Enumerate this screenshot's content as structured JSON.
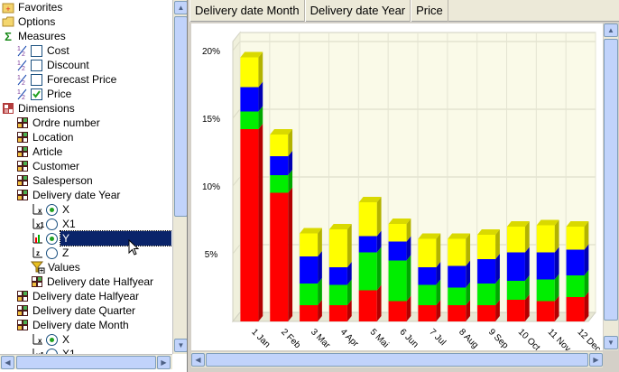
{
  "tree": {
    "items": [
      {
        "label": "Favorites",
        "icon": "favorites-star-folder-icon",
        "indent": 0
      },
      {
        "label": "Options",
        "icon": "folder-icon",
        "indent": 0
      },
      {
        "label": "Measures",
        "icon": "sigma-measures-icon",
        "indent": 0
      },
      {
        "label": "Cost",
        "icon": "measure-icon",
        "indent": 1,
        "checkbox": false
      },
      {
        "label": "Discount",
        "icon": "measure-icon",
        "indent": 1,
        "checkbox": false
      },
      {
        "label": "Forecast Price",
        "icon": "measure-icon",
        "indent": 1,
        "checkbox": false
      },
      {
        "label": "Price",
        "icon": "measure-icon",
        "indent": 1,
        "checkbox": true
      },
      {
        "label": "Dimensions",
        "icon": "dimensions-cube-icon",
        "indent": 0
      },
      {
        "label": "Ordre number",
        "icon": "dimension-cube-icon",
        "indent": 1
      },
      {
        "label": "Location",
        "icon": "dimension-cube-icon",
        "indent": 1
      },
      {
        "label": "Article",
        "icon": "dimension-cube-icon",
        "indent": 1
      },
      {
        "label": "Customer",
        "icon": "dimension-cube-icon",
        "indent": 1
      },
      {
        "label": "Salesperson",
        "icon": "dimension-cube-icon",
        "indent": 1
      },
      {
        "label": "Delivery date Year",
        "icon": "dimension-cube-icon",
        "indent": 1
      },
      {
        "label": "X",
        "icon": "x-axis-icon",
        "indent": 2,
        "radio": "on"
      },
      {
        "label": "X1",
        "icon": "x1-axis-icon",
        "indent": 2,
        "radio": "off"
      },
      {
        "label": "Y",
        "icon": "y-axis-icon",
        "indent": 2,
        "radio": "on",
        "selected": true
      },
      {
        "label": "Z",
        "icon": "z-axis-icon",
        "indent": 2,
        "radio": "off"
      },
      {
        "label": "Values",
        "icon": "values-filter-icon",
        "indent": 2
      },
      {
        "label": "Delivery date Halfyear",
        "icon": "dimension-cube-icon",
        "indent": 2
      },
      {
        "label": "Delivery date Halfyear",
        "icon": "dimension-cube-icon",
        "indent": 1
      },
      {
        "label": "Delivery date Quarter",
        "icon": "dimension-cube-icon",
        "indent": 1
      },
      {
        "label": "Delivery date Month",
        "icon": "dimension-cube-icon",
        "indent": 1
      },
      {
        "label": "X",
        "icon": "x-axis-icon",
        "indent": 2,
        "radio": "on"
      },
      {
        "label": "X1",
        "icon": "x1-axis-icon",
        "indent": 2,
        "radio": "off"
      }
    ]
  },
  "header": {
    "items": [
      "Delivery date Month",
      "Delivery date Year",
      "Price"
    ]
  },
  "chart_data": {
    "type": "bar",
    "stacked": true,
    "three_d": true,
    "categories": [
      "1 Jan",
      "2 Feb",
      "3 Mar",
      "4 Apr",
      "5 Mai",
      "6 Jun",
      "7 Jul",
      "8 Aug",
      "9 Sep",
      "10 Oct",
      "11 Nov",
      "12 Dec"
    ],
    "series": [
      {
        "color": "#ff0000",
        "values": [
          14.2,
          9.5,
          1.2,
          1.2,
          2.3,
          1.5,
          1.2,
          1.2,
          1.2,
          1.6,
          1.5,
          1.8
        ]
      },
      {
        "color": "#00ee00",
        "values": [
          1.3,
          1.3,
          1.6,
          1.5,
          2.8,
          3.0,
          1.5,
          1.3,
          1.6,
          1.4,
          1.6,
          1.6
        ]
      },
      {
        "color": "#0000ff",
        "values": [
          1.8,
          1.4,
          2.0,
          1.3,
          1.2,
          1.4,
          1.3,
          1.6,
          1.8,
          2.1,
          2.0,
          1.9
        ]
      },
      {
        "color": "#ffff00",
        "values": [
          2.2,
          1.6,
          1.7,
          2.8,
          2.5,
          1.3,
          2.1,
          2.0,
          1.8,
          1.9,
          2.0,
          1.7
        ]
      }
    ],
    "y_ticks": [
      "20%",
      "15%",
      "10%",
      "5%"
    ],
    "y_tick_values": [
      20,
      15,
      10,
      5
    ],
    "ylim": [
      0,
      20
    ],
    "grid": true,
    "legend": "none"
  }
}
